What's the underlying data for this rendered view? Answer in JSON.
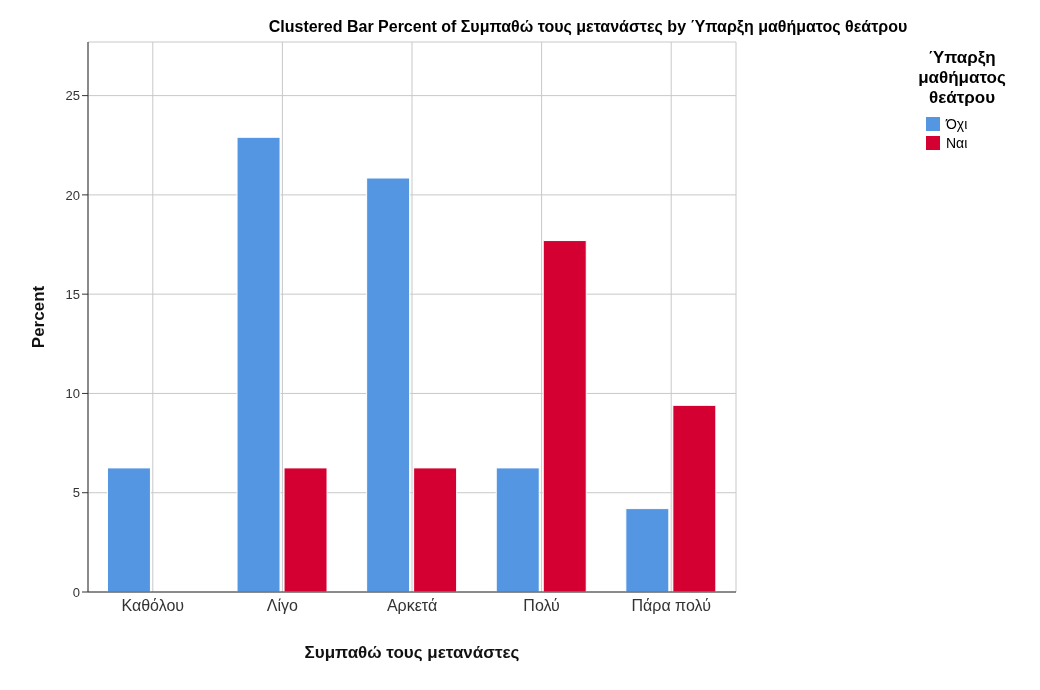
{
  "chart_data": {
    "type": "bar",
    "title": "Clustered Bar Percent of Συμπαθώ τους μετανάστες by Ύπαρξη μαθήματος θεάτρου",
    "xlabel": "Συμπαθώ τους μετανάστες",
    "ylabel": "Percent",
    "legend_title": "Ύπαρξη μαθήματος θεάτρου",
    "categories": [
      "Καθόλου",
      "Λίγο",
      "Αρκετά",
      "Πολύ",
      "Πάρα πολύ"
    ],
    "series": [
      {
        "name": "Όχι",
        "color": "#5596e3",
        "values": [
          6.25,
          22.9,
          20.85,
          6.25,
          4.2
        ]
      },
      {
        "name": "Ναι",
        "color": "#d40032",
        "values": [
          0,
          6.25,
          6.25,
          17.7,
          9.4
        ]
      }
    ],
    "ylim": [
      0,
      27.7
    ],
    "yticks": [
      0,
      5,
      10,
      15,
      20,
      25
    ],
    "grid": true,
    "legend": "top right"
  }
}
